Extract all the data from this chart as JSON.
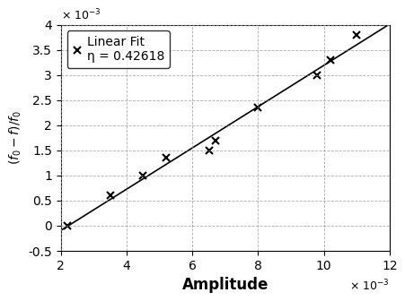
{
  "x_data": [
    0.0022,
    0.0035,
    0.0045,
    0.0052,
    0.0065,
    0.0067,
    0.008,
    0.0098,
    0.0102,
    0.011
  ],
  "y_data": [
    0.0,
    0.0006,
    0.001,
    0.00135,
    0.0015,
    0.0017,
    0.00235,
    0.003,
    0.0033,
    0.0038
  ],
  "eta": 0.42618,
  "xlim": [
    0.002,
    0.012
  ],
  "ylim": [
    -0.0005,
    0.004
  ],
  "xlabel": "Amplitude",
  "ylabel": "( f_0 - f ) / f_0",
  "legend_label_line1": "Linear Fit",
  "legend_label_line2": "η = 0.42618",
  "marker": "x",
  "line_color": "black",
  "marker_color": "black",
  "grid_color": "#999999",
  "xlabel_fontsize": 12,
  "ylabel_fontsize": 10,
  "tick_fontsize": 10,
  "legend_fontsize": 10,
  "x_ticks": [
    0.002,
    0.004,
    0.006,
    0.008,
    0.01,
    0.012
  ],
  "y_ticks": [
    -0.0005,
    0.0,
    0.0005,
    0.001,
    0.0015,
    0.002,
    0.0025,
    0.003,
    0.0035,
    0.004
  ]
}
